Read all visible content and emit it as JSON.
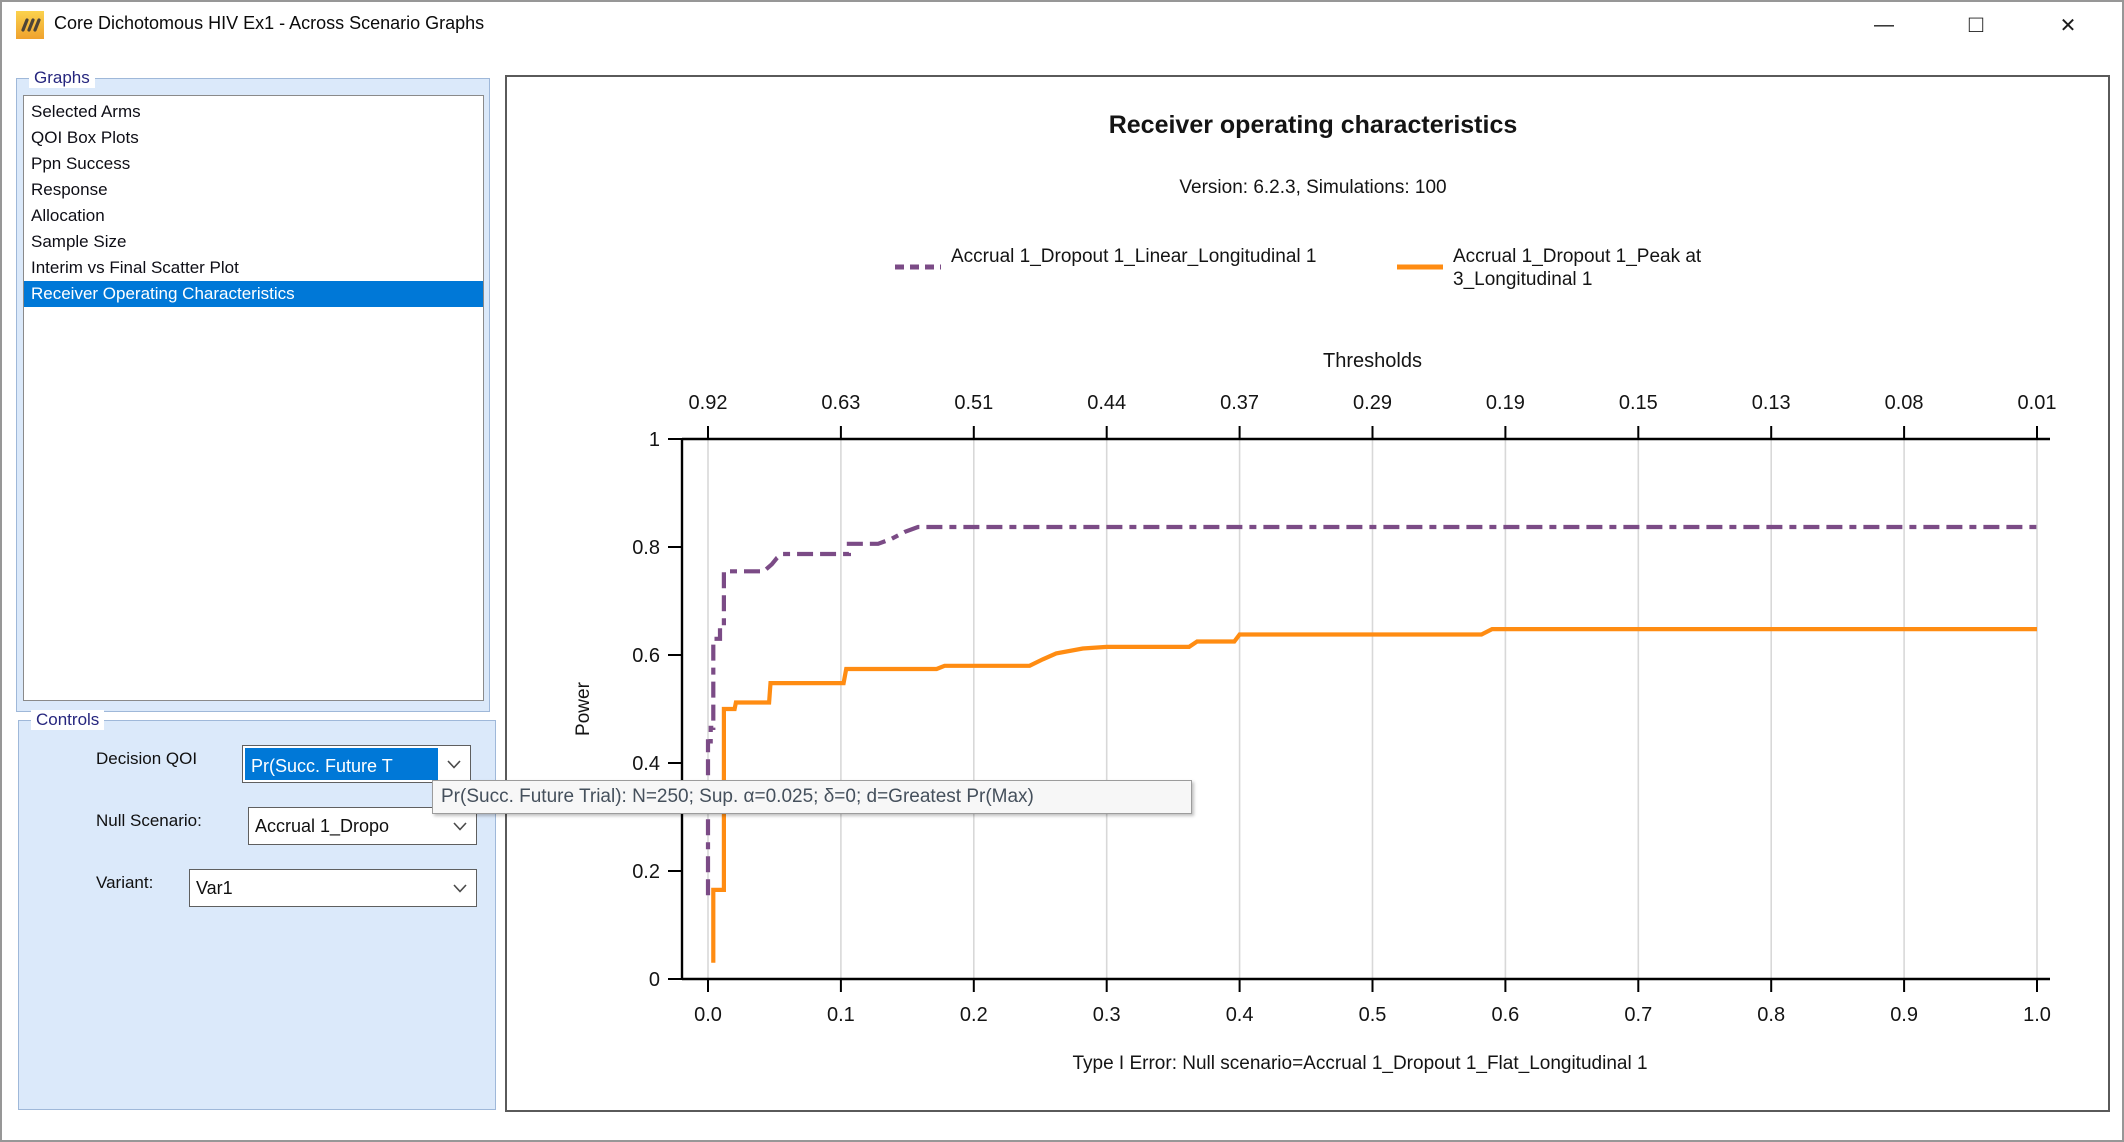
{
  "window": {
    "title": "Core Dichotomous HIV Ex1 - Across Scenario Graphs",
    "buttons": {
      "minimize": "—",
      "maximize": "□",
      "close": "✕"
    }
  },
  "graphs_panel": {
    "label": "Graphs",
    "items": [
      "Selected Arms",
      "QOI Box Plots",
      "Ppn Success",
      "Response",
      "Allocation",
      "Sample Size",
      "Interim vs Final Scatter Plot",
      "Receiver Operating Characteristics"
    ],
    "selected_index": 7
  },
  "controls_panel": {
    "label": "Controls",
    "fields": [
      {
        "label": "Decision QOI",
        "value": "Pr(Succ. Future T"
      },
      {
        "label": "Null Scenario:",
        "value": "Accrual 1_Dropo"
      },
      {
        "label": "Variant:",
        "value": "Var1"
      }
    ]
  },
  "tooltip": {
    "text": "Pr(Succ. Future Trial): N=250; Sup. α=0.025; δ=0; d=Greatest Pr(Max)"
  },
  "colors": {
    "selection": "#0078d7",
    "groupbox_fill": "#dbe9fa",
    "series_purple": "#7b4b86",
    "series_orange": "#ff8c12"
  },
  "chart_data": {
    "type": "line",
    "title": "Receiver operating characteristics",
    "subtitle": "Version: 6.2.3, Simulations: 100",
    "xlabel": "Type I Error: Null scenario=Accrual 1_Dropout 1_Flat_Longitudinal 1",
    "ylabel": "Power",
    "top_axis_label": "Thresholds",
    "top_axis_ticks": [
      "0.92",
      "0.63",
      "0.51",
      "0.44",
      "0.37",
      "0.29",
      "0.19",
      "0.15",
      "0.13",
      "0.08",
      "0.01"
    ],
    "x_ticks": [
      "0.0",
      "0.1",
      "0.2",
      "0.3",
      "0.4",
      "0.5",
      "0.6",
      "0.7",
      "0.8",
      "0.9",
      "1.0"
    ],
    "y_ticks": [
      "0",
      "0.2",
      "0.4",
      "0.6",
      "0.8",
      "1"
    ],
    "xlim": [
      0,
      1
    ],
    "ylim": [
      0,
      1
    ],
    "grid": "vertical-only",
    "legend_position": "top",
    "series": [
      {
        "name": "Accrual 1_Dropout 1_Linear_Longitudinal 1",
        "color": "#7b4b86",
        "style": "dashed",
        "points": [
          [
            0.0,
            0.155
          ],
          [
            0.0,
            0.44
          ],
          [
            0.002,
            0.44
          ],
          [
            0.002,
            0.465
          ],
          [
            0.004,
            0.465
          ],
          [
            0.004,
            0.63
          ],
          [
            0.009,
            0.63
          ],
          [
            0.009,
            0.655
          ],
          [
            0.012,
            0.655
          ],
          [
            0.012,
            0.755
          ],
          [
            0.042,
            0.755
          ],
          [
            0.048,
            0.768
          ],
          [
            0.052,
            0.78
          ],
          [
            0.056,
            0.787
          ],
          [
            0.106,
            0.787
          ],
          [
            0.106,
            0.806
          ],
          [
            0.128,
            0.806
          ],
          [
            0.138,
            0.815
          ],
          [
            0.148,
            0.828
          ],
          [
            0.158,
            0.837
          ],
          [
            1.0,
            0.837
          ]
        ]
      },
      {
        "name": "Accrual 1_Dropout 1_Peak at 3_Longitudinal 1",
        "color": "#ff8c12",
        "style": "solid",
        "points": [
          [
            0.004,
            0.03
          ],
          [
            0.004,
            0.165
          ],
          [
            0.012,
            0.165
          ],
          [
            0.012,
            0.5
          ],
          [
            0.02,
            0.5
          ],
          [
            0.021,
            0.512
          ],
          [
            0.046,
            0.512
          ],
          [
            0.047,
            0.548
          ],
          [
            0.102,
            0.548
          ],
          [
            0.104,
            0.574
          ],
          [
            0.172,
            0.574
          ],
          [
            0.178,
            0.58
          ],
          [
            0.242,
            0.58
          ],
          [
            0.252,
            0.592
          ],
          [
            0.262,
            0.603
          ],
          [
            0.282,
            0.612
          ],
          [
            0.3,
            0.615
          ],
          [
            0.362,
            0.615
          ],
          [
            0.368,
            0.625
          ],
          [
            0.396,
            0.625
          ],
          [
            0.4,
            0.638
          ],
          [
            0.582,
            0.638
          ],
          [
            0.59,
            0.648
          ],
          [
            1.0,
            0.648
          ]
        ]
      }
    ]
  }
}
